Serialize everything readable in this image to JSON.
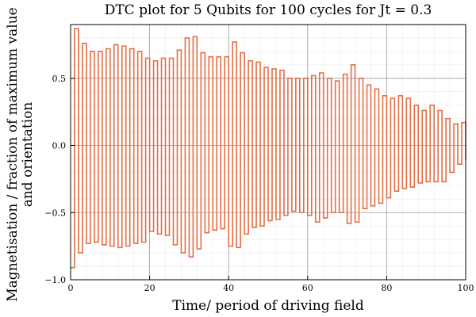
{
  "chart_data": {
    "type": "line",
    "title": "DTC plot for 5 Qubits for 100 cycles for Jt = 0.3",
    "xlabel": "Time/ period of driving field",
    "ylabel_line1": "Magnetisation / fraction of maximum value",
    "ylabel_line2": "and orientation",
    "xlim": [
      0,
      100
    ],
    "ylim": [
      -1.0,
      0.9
    ],
    "xticks": [
      0,
      20,
      40,
      60,
      80,
      100
    ],
    "xtick_labels": [
      "0",
      "20",
      "40",
      "60",
      "80",
      "100"
    ],
    "yticks": [
      -1.0,
      -0.5,
      0.0,
      0.5
    ],
    "ytick_labels": [
      "−1.0",
      "−0.5",
      "0.0",
      "0.5"
    ],
    "grid": true,
    "legend": false,
    "step": "post",
    "color": "#e26f46",
    "series": [
      {
        "x": [
          0,
          1,
          2,
          3,
          4,
          5,
          6,
          7,
          8,
          9,
          10,
          11,
          12,
          13,
          14,
          15,
          16,
          17,
          18,
          19,
          20,
          21,
          22,
          23,
          24,
          25,
          26,
          27,
          28,
          29,
          30,
          31,
          32,
          33,
          34,
          35,
          36,
          37,
          38,
          39,
          40,
          41,
          42,
          43,
          44,
          45,
          46,
          47,
          48,
          49,
          50,
          51,
          52,
          53,
          54,
          55,
          56,
          57,
          58,
          59,
          60,
          61,
          62,
          63,
          64,
          65,
          66,
          67,
          68,
          69,
          70,
          71,
          72,
          73,
          74,
          75,
          76,
          77,
          78,
          79,
          80,
          81,
          82,
          83,
          84,
          85,
          86,
          87,
          88,
          89,
          90,
          91,
          92,
          93,
          94,
          95,
          96,
          97,
          98,
          99,
          100
        ],
        "y": [
          -0.91,
          0.87,
          -0.8,
          0.76,
          -0.73,
          0.7,
          -0.72,
          0.7,
          -0.74,
          0.72,
          -0.75,
          0.75,
          -0.76,
          0.74,
          -0.75,
          0.72,
          -0.73,
          0.7,
          -0.72,
          0.65,
          -0.64,
          0.63,
          -0.66,
          0.65,
          -0.67,
          0.65,
          -0.74,
          0.71,
          -0.8,
          0.8,
          -0.83,
          0.81,
          -0.77,
          0.69,
          -0.65,
          0.66,
          -0.63,
          0.66,
          -0.62,
          0.66,
          -0.75,
          0.77,
          -0.76,
          0.69,
          -0.66,
          0.63,
          -0.61,
          0.62,
          -0.6,
          0.58,
          -0.56,
          0.57,
          -0.55,
          0.56,
          -0.52,
          0.5,
          -0.49,
          0.5,
          -0.5,
          0.5,
          -0.52,
          0.52,
          -0.57,
          0.54,
          -0.54,
          0.5,
          -0.5,
          0.48,
          -0.5,
          0.53,
          -0.58,
          0.6,
          -0.57,
          0.5,
          -0.47,
          0.45,
          -0.45,
          0.42,
          -0.43,
          0.37,
          -0.39,
          0.35,
          -0.34,
          0.37,
          -0.32,
          0.35,
          -0.31,
          0.3,
          -0.28,
          0.26,
          -0.27,
          0.3,
          -0.27,
          0.26,
          -0.27,
          0.2,
          -0.2,
          0.16,
          -0.14,
          0.17,
          -0.11
        ]
      }
    ]
  }
}
